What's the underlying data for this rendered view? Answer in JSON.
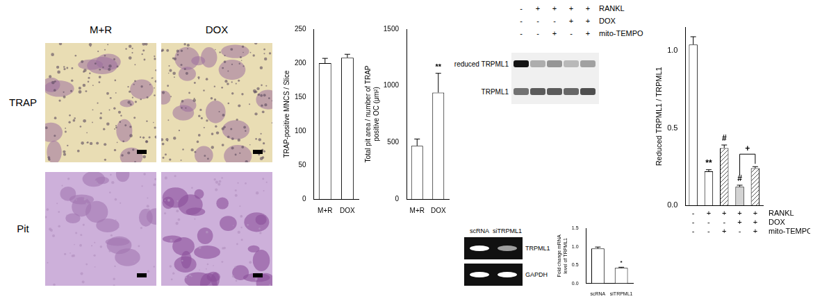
{
  "figure_panels": {
    "micrographs": {
      "columns": [
        "M+R",
        "DOX"
      ],
      "rows": [
        "TRAP",
        "Pit"
      ]
    },
    "western_blot": {
      "treatments": [
        {
          "name": "RANKL",
          "signs": [
            "-",
            "+",
            "+",
            "+",
            "+"
          ]
        },
        {
          "name": "DOX",
          "signs": [
            "-",
            "-",
            "-",
            "+",
            "+"
          ]
        },
        {
          "name": "mito-TEMPO",
          "signs": [
            "-",
            "-",
            "+",
            "-",
            "+"
          ]
        }
      ],
      "rows": [
        {
          "name": "reduced TRPML1",
          "band_strength": [
            1.0,
            0.35,
            0.45,
            0.3,
            0.4
          ]
        },
        {
          "name": "TRPML1",
          "band_strength": [
            0.6,
            0.7,
            0.7,
            0.65,
            0.75
          ]
        }
      ]
    },
    "rt_pcr_gel": {
      "lanes": [
        "scRNA",
        "siTRPML1"
      ],
      "rows": [
        {
          "name": "TRPML1",
          "band_strength": [
            1.0,
            0.55
          ]
        },
        {
          "name": "GAPDH",
          "band_strength": [
            1.0,
            1.0
          ]
        }
      ]
    }
  },
  "chart_data": [
    {
      "type": "bar",
      "y_label": "TRAP-positive MNCS / Slice",
      "categories": [
        "M+R",
        "DOX"
      ],
      "values": [
        200,
        208
      ],
      "errors": [
        7,
        5
      ],
      "colors": [
        "#ffffff",
        "#ffffff"
      ],
      "ylim": [
        0,
        250
      ],
      "yticks": [
        0,
        50,
        100,
        150,
        200,
        250
      ],
      "grid": false
    },
    {
      "type": "bar",
      "y_label": "Total pit area / number of TRAP positive OC (μm²)",
      "categories": [
        "M+R",
        "DOX"
      ],
      "values": [
        470,
        940
      ],
      "errors": [
        60,
        170
      ],
      "colors": [
        "#ffffff",
        "#ffffff"
      ],
      "annotations": [
        {
          "index": 1,
          "text": "**"
        }
      ],
      "ylim": [
        0,
        1500
      ],
      "yticks": [
        0,
        500,
        1000,
        1500
      ],
      "grid": false
    },
    {
      "type": "bar",
      "y_label": "Reduced TRPML1 / TRPML1",
      "categories": [
        null,
        null,
        null,
        null,
        null
      ],
      "treatments": [
        {
          "name": "RANKL",
          "signs": [
            "-",
            "+",
            "+",
            "+",
            "+"
          ]
        },
        {
          "name": "DOX",
          "signs": [
            "-",
            "-",
            "-",
            "+",
            "+"
          ]
        },
        {
          "name": "mito-TEMPO",
          "signs": [
            "-",
            "-",
            "+",
            "-",
            "+"
          ]
        }
      ],
      "values": [
        1.04,
        0.22,
        0.37,
        0.12,
        0.24
      ],
      "errors": [
        0.05,
        0.01,
        0.02,
        0.01,
        0.01
      ],
      "colors": [
        "#ffffff",
        "#ffffff",
        "#ffffff",
        "#d3d3d3",
        "#ffffff"
      ],
      "hatched": [
        false,
        false,
        true,
        false,
        true
      ],
      "annotations": [
        {
          "index": 1,
          "text": "**"
        },
        {
          "index": 2,
          "text": "#"
        },
        {
          "index": 3,
          "text": "#"
        }
      ],
      "brackets": [
        {
          "from": 3,
          "to": 4,
          "text": "+"
        }
      ],
      "ylim": [
        0,
        1.15
      ],
      "yticks": [
        {
          "value": 0,
          "label": "0.0"
        },
        {
          "value": 0.5,
          "label": "0.5"
        },
        {
          "value": 1,
          "label": "1.0"
        }
      ],
      "grid": false
    },
    {
      "type": "bar",
      "y_label": "Fold change mRNA level of TRPML1",
      "categories": [
        "scRNA",
        "siTRPML1"
      ],
      "values": [
        0.95,
        0.42
      ],
      "errors": [
        0.04,
        0.02
      ],
      "colors": [
        "#ffffff",
        "#ffffff"
      ],
      "annotations": [
        {
          "index": 1,
          "text": "*"
        }
      ],
      "ylim": [
        0,
        1.5
      ],
      "yticks": [
        {
          "value": 0,
          "label": "0.0"
        },
        {
          "value": 0.5,
          "label": "0.5"
        },
        {
          "value": 1,
          "label": "1.0"
        },
        {
          "value": 1.5,
          "label": "1.5"
        }
      ],
      "grid": false
    }
  ]
}
